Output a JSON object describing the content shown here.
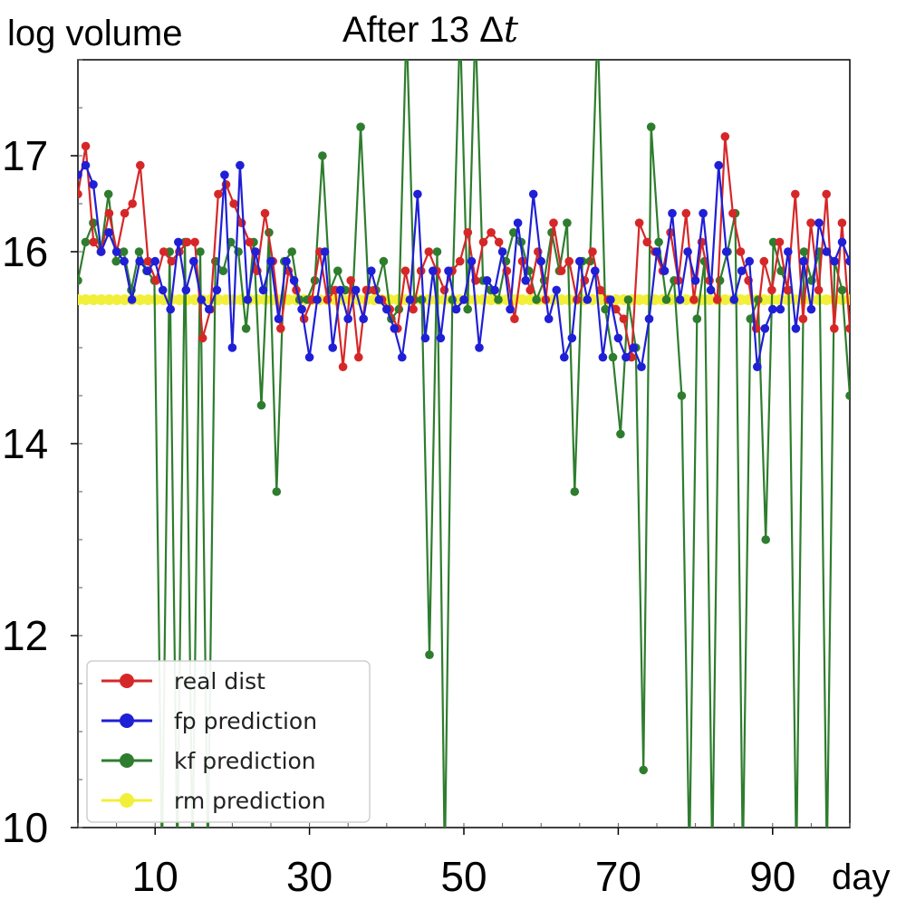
{
  "chart_data": {
    "type": "line",
    "title": "After 13 Δt",
    "title_main": "After 13 ",
    "title_delta": "Δ",
    "title_var": "t",
    "ylabel": "log volume",
    "xlabel": "day",
    "xlim": [
      0,
      100
    ],
    "ylim": [
      10,
      18
    ],
    "x_ticks": [
      10,
      30,
      50,
      70,
      90
    ],
    "y_ticks": [
      10,
      12,
      14,
      16,
      17
    ],
    "legend_position": "bottom-left",
    "series": [
      {
        "name": "real dist",
        "color": "#d62728",
        "values": [
          16.6,
          17.1,
          16.1,
          16.0,
          16.4,
          16.0,
          16.4,
          16.5,
          16.9,
          15.9,
          15.7,
          16.0,
          15.9,
          16.0,
          16.1,
          16.1,
          15.1,
          15.4,
          16.6,
          16.7,
          16.5,
          16.3,
          16.1,
          15.8,
          16.4,
          15.9,
          15.2,
          15.8,
          15.6,
          15.3,
          15.5,
          16.0,
          15.5,
          15.6,
          14.8,
          15.7,
          14.9,
          15.6,
          15.6,
          15.5,
          15.4,
          15.2,
          15.8,
          15.4,
          15.8,
          16.0,
          15.8,
          15.6,
          15.8,
          15.9,
          16.2,
          15.7,
          16.1,
          16.2,
          16.1,
          15.8,
          15.3,
          15.9,
          15.6,
          16.0,
          15.5,
          16.3,
          15.8,
          15.9,
          15.5,
          15.7,
          16.0,
          15.6,
          15.5,
          15.4,
          15.3,
          14.9,
          16.3,
          16.1,
          16.0,
          15.8,
          16.2,
          15.7,
          16.4,
          15.5,
          16.1,
          15.7,
          15.5,
          17.2,
          16.4,
          16.0,
          15.7,
          15.2,
          15.9,
          15.6,
          16.1,
          15.6,
          16.6,
          15.3,
          16.3,
          15.6,
          16.6,
          15.2,
          16.3,
          15.2
        ]
      },
      {
        "name": "fp prediction",
        "color": "#1f1fd6",
        "values": [
          16.8,
          16.9,
          16.7,
          16.0,
          16.2,
          16.0,
          15.9,
          15.5,
          15.9,
          15.8,
          15.9,
          15.6,
          15.4,
          16.1,
          15.6,
          15.9,
          15.5,
          15.4,
          15.6,
          16.8,
          15.0,
          16.9,
          15.5,
          16.0,
          15.6,
          15.9,
          15.3,
          15.9,
          15.7,
          15.4,
          14.9,
          15.5,
          16.0,
          15.0,
          15.6,
          15.3,
          15.6,
          15.3,
          15.8,
          15.5,
          15.4,
          15.2,
          14.9,
          15.5,
          16.6,
          15.1,
          15.8,
          15.1,
          15.8,
          15.4,
          15.5,
          15.9,
          15.0,
          15.7,
          15.6,
          16.0,
          15.4,
          16.3,
          15.7,
          16.6,
          15.9,
          15.3,
          15.6,
          14.9,
          15.1,
          15.9,
          15.5,
          15.8,
          14.9,
          15.5,
          15.1,
          14.9,
          15.0,
          14.8,
          15.3,
          16.0,
          15.8,
          16.4,
          15.5,
          16.0,
          15.7,
          16.4,
          15.6,
          16.9,
          16.0,
          15.5,
          15.8,
          15.9,
          14.8,
          15.2,
          15.4,
          15.4,
          16.0,
          15.2,
          15.9,
          15.4,
          16.3,
          16.0,
          15.9,
          16.1,
          15.9
        ]
      },
      {
        "name": "kf prediction",
        "color": "#2e7d2e",
        "values": [
          15.7,
          16.1,
          16.3,
          16.0,
          16.6,
          15.9,
          16.0,
          15.6,
          16.0,
          15.8,
          15.7,
          10.0,
          16.0,
          10.0,
          16.1,
          10.0,
          16.0,
          10.0,
          15.9,
          15.8,
          16.1,
          16.0,
          15.2,
          16.1,
          14.4,
          16.2,
          13.5,
          15.9,
          16.0,
          15.5,
          15.5,
          15.7,
          17.0,
          15.6,
          15.8,
          15.6,
          15.6,
          17.3,
          15.6,
          15.6,
          15.9,
          15.3,
          15.4,
          18.0,
          15.5,
          15.5,
          11.8,
          16.0,
          10.0,
          15.5,
          18.0,
          15.4,
          18.0,
          15.7,
          15.6,
          15.5,
          15.9,
          16.2,
          16.1,
          15.8,
          15.5,
          15.7,
          16.2,
          15.8,
          16.3,
          13.5,
          15.9,
          15.9,
          18.0,
          15.4,
          14.9,
          14.1,
          15.5,
          15.0,
          10.6,
          17.3,
          16.1,
          15.5,
          15.7,
          14.5,
          10.0,
          15.3,
          15.9,
          10.0,
          15.7,
          16.0,
          16.4,
          10.0,
          15.3,
          15.5,
          13.0,
          16.1,
          15.8,
          15.6,
          10.0,
          16.0,
          15.7,
          16.0,
          10.0,
          15.9,
          15.6,
          14.5
        ]
      },
      {
        "name": "rm prediction",
        "color": "#f2ef3a",
        "values": [
          15.5,
          15.5,
          15.5,
          15.5,
          15.5,
          15.5,
          15.5,
          15.5,
          15.5,
          15.5,
          15.5,
          15.5,
          15.5,
          15.5,
          15.5,
          15.5,
          15.5,
          15.5,
          15.5,
          15.5,
          15.5,
          15.5,
          15.5,
          15.5,
          15.5,
          15.5,
          15.5,
          15.5,
          15.5,
          15.5,
          15.5,
          15.5,
          15.5,
          15.5,
          15.5,
          15.5,
          15.5,
          15.5,
          15.5,
          15.5,
          15.5,
          15.5,
          15.5,
          15.5,
          15.5,
          15.5,
          15.5,
          15.5,
          15.5,
          15.5,
          15.5,
          15.5,
          15.5,
          15.5,
          15.5,
          15.5,
          15.5,
          15.5,
          15.5,
          15.5,
          15.5,
          15.5,
          15.5,
          15.5,
          15.5,
          15.5,
          15.5,
          15.5,
          15.5,
          15.5,
          15.5,
          15.5,
          15.5,
          15.5,
          15.5,
          15.5,
          15.5,
          15.5,
          15.5,
          15.5,
          15.5,
          15.5,
          15.5,
          15.5,
          15.5,
          15.5,
          15.5,
          15.5,
          15.5,
          15.5,
          15.5,
          15.5,
          15.5,
          15.5,
          15.5,
          15.5,
          15.5,
          15.5,
          15.5,
          15.5
        ]
      }
    ]
  }
}
